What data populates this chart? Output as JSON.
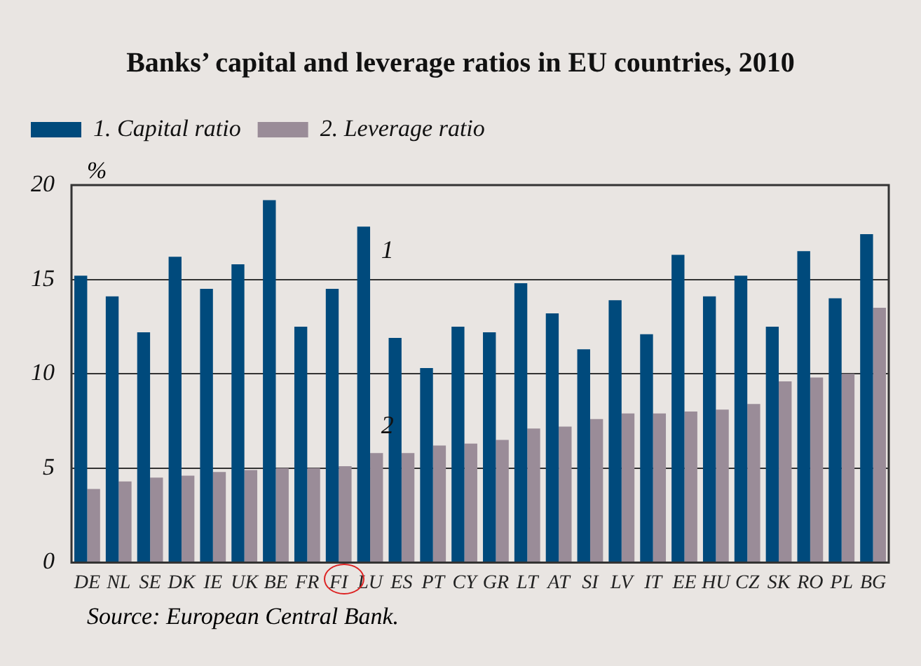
{
  "chart_data": {
    "type": "bar",
    "title": "Banks’ capital and leverage ratios in EU countries, 2010",
    "ylabel": "%",
    "categories": [
      "DE",
      "NL",
      "SE",
      "DK",
      "IE",
      "UK",
      "BE",
      "FR",
      "FI",
      "LU",
      "ES",
      "PT",
      "CY",
      "GR",
      "LT",
      "AT",
      "SI",
      "LV",
      "IT",
      "EE",
      "HU",
      "CZ",
      "SK",
      "RO",
      "PL",
      "BG"
    ],
    "series": [
      {
        "name": "1. Capital ratio",
        "color": "#004a7c",
        "values": [
          15.2,
          14.1,
          12.2,
          16.2,
          14.5,
          15.8,
          19.2,
          12.5,
          14.5,
          17.8,
          11.9,
          10.3,
          12.5,
          12.2,
          14.8,
          13.2,
          11.3,
          13.9,
          12.1,
          16.3,
          14.1,
          15.2,
          12.5,
          16.5,
          14.0,
          17.4
        ]
      },
      {
        "name": "2. Leverage ratio",
        "color": "#9a8c98",
        "values": [
          3.9,
          4.3,
          4.5,
          4.6,
          4.8,
          4.9,
          5.0,
          5.0,
          5.1,
          5.8,
          5.8,
          6.2,
          6.3,
          6.5,
          7.1,
          7.2,
          7.6,
          7.9,
          7.9,
          8.0,
          8.1,
          8.4,
          9.6,
          9.8,
          10.0,
          13.5
        ]
      }
    ],
    "ylim": [
      0,
      20
    ],
    "yticks": [
      0,
      5,
      10,
      15,
      20
    ],
    "grid": "y",
    "legend": "top left",
    "annotations": [
      {
        "text": "1",
        "x": "LU",
        "y": 16.5
      },
      {
        "text": "2",
        "x": "LU",
        "y": 7.2
      },
      "Source: European Central Bank."
    ]
  }
}
